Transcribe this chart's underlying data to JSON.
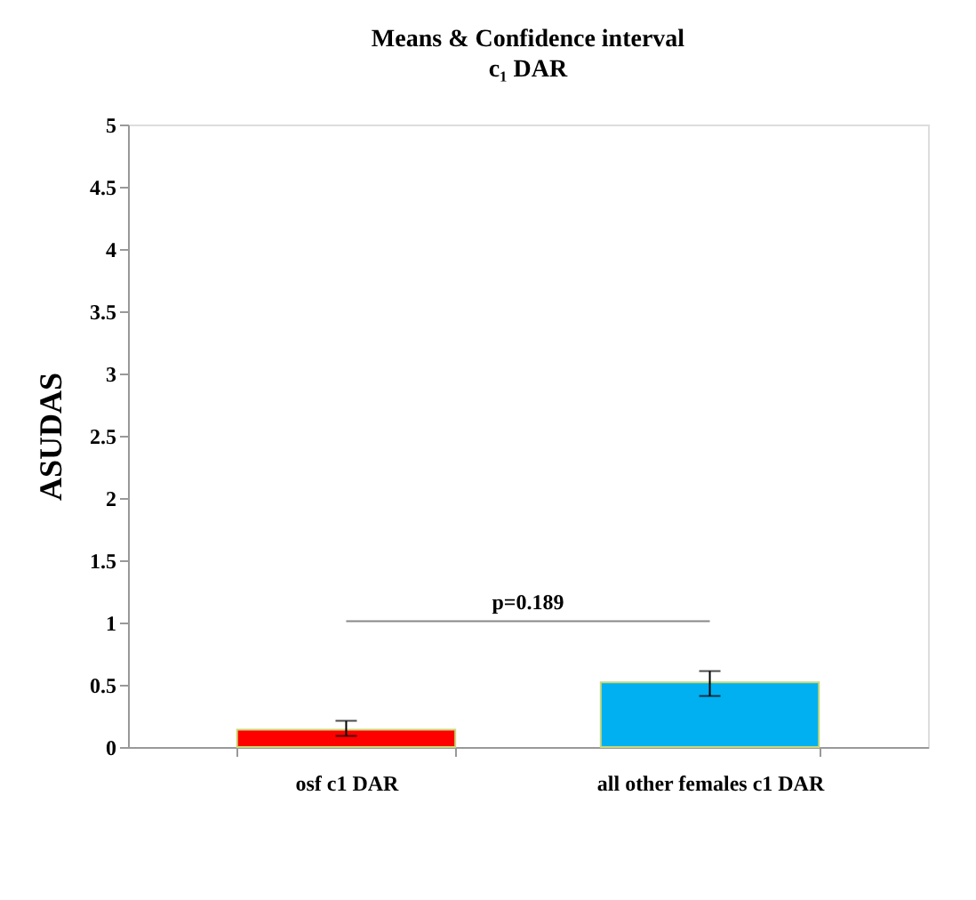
{
  "chart_data": {
    "type": "bar",
    "title": "Means & Confidence interval",
    "subtitle": "c₁ DAR",
    "ylabel": "ASUDAS",
    "categories": [
      "osf c1 DAR",
      "all other females c1 DAR"
    ],
    "values": [
      0.14,
      0.52
    ],
    "colors": [
      "#ff0000",
      "#00b0f0"
    ],
    "errors": [
      [
        0.09,
        0.21
      ],
      [
        0.41,
        0.61
      ]
    ],
    "ylim": [
      0,
      5
    ],
    "yticks": [
      0,
      0.5,
      1,
      1.5,
      2,
      2.5,
      3,
      3.5,
      4,
      4.5,
      5
    ],
    "grid": false,
    "annotations": [
      "p=0.189"
    ]
  }
}
